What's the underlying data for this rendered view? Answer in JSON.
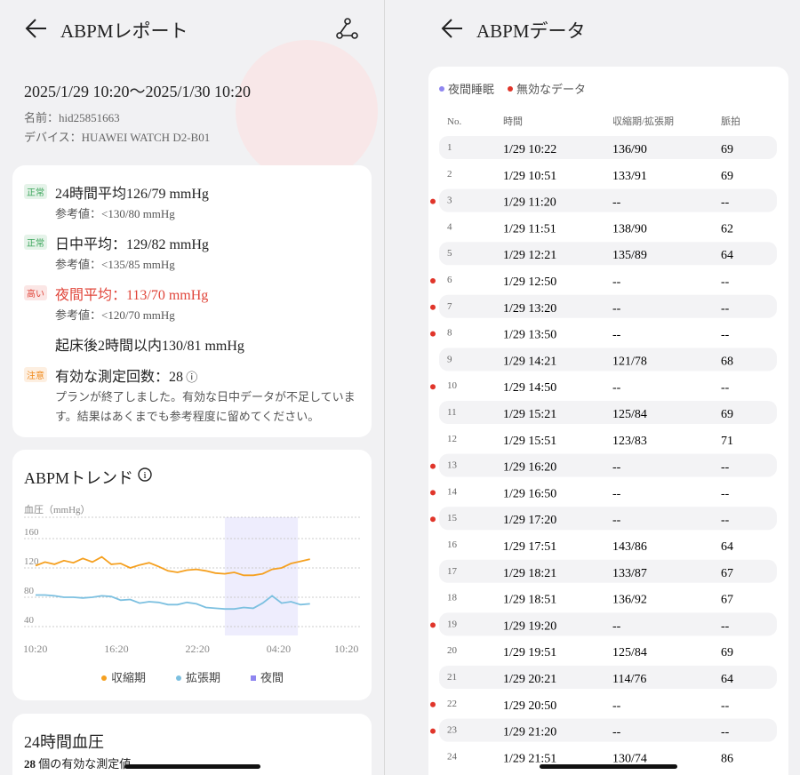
{
  "left": {
    "header": {
      "title": "ABPMレポート"
    },
    "report": {
      "period": "2025/1/29 10:20〜2025/1/30 10:20",
      "name": "名前：hid25851663",
      "device": "デバイス：HUAWEI WATCH D2-B01"
    },
    "summary": [
      {
        "badge": "正常",
        "badge_color": "#3aa55a",
        "text": "24時間平均126/79 mmHg",
        "ref": "参考値：<130/80 mmHg"
      },
      {
        "badge": "正常",
        "badge_color": "#3aa55a",
        "text": "日中平均：129/82 mmHg",
        "ref": "参考値：<135/85 mmHg"
      },
      {
        "badge": "高い",
        "badge_color": "#e0453a",
        "text": "夜間平均：113/70 mmHg",
        "ref": "参考値：<120/70 mmHg",
        "text_color": "#e0453a"
      },
      {
        "text": "起床後2時間以内130/81 mmHg"
      },
      {
        "badge": "注意",
        "badge_color": "#f08a1c",
        "text": "有効な測定回数：28",
        "ref": "プランが終了しました。有効な日中データが不足しています。結果はあくまでも参考程度に留めてください。"
      }
    ],
    "trend": {
      "title": "ABPMトレンド",
      "chart": {
        "type": "line",
        "y_label": "血圧（mmHg）",
        "xlim": [
          0,
          24
        ],
        "xticks": [
          {
            "value": 0,
            "label": "10:20"
          },
          {
            "value": 6,
            "label": "16:20"
          },
          {
            "value": 12,
            "label": "22:20"
          },
          {
            "value": 18,
            "label": "04:20"
          },
          {
            "value": 24,
            "label": "10:20"
          }
        ],
        "ylim": [
          40,
          160
        ],
        "yticks": [
          40,
          80,
          120,
          160
        ],
        "night": [
          14,
          19.4
        ],
        "night_name": "夜間",
        "night_color": "#8f86f0",
        "x": [
          0,
          0.7,
          1.4,
          2.1,
          2.8,
          3.5,
          4.2,
          4.9,
          5.6,
          6.3,
          7,
          7.7,
          8.4,
          9.1,
          9.8,
          10.5,
          11.2,
          11.9,
          12.6,
          13.3,
          14,
          14.7,
          15.4,
          16.1,
          16.8,
          17.5,
          18.2,
          18.9,
          19.6,
          20.3
        ],
        "series": [
          {
            "name": "収縮期",
            "color": "#f5a020",
            "values": [
              123,
              128,
              125,
              130,
              127,
              133,
              128,
              135,
              125,
              126,
              120,
              124,
              127,
              122,
              116,
              114,
              117,
              118,
              116,
              113,
              112,
              114,
              110,
              110,
              112,
              118,
              120,
              126,
              129,
              132
            ]
          },
          {
            "name": "拡張期",
            "color": "#7cc0e0",
            "values": [
              83,
              83,
              82,
              80,
              80,
              79,
              80,
              82,
              81,
              76,
              77,
              72,
              74,
              73,
              70,
              70,
              73,
              71,
              66,
              65,
              64,
              64,
              66,
              65,
              72,
              82,
              72,
              74,
              70,
              71
            ]
          }
        ]
      }
    },
    "bp24": {
      "title": "24時間血圧",
      "valid_count": "28",
      "valid_count_label": "個の有効な測定値"
    }
  },
  "right": {
    "header": {
      "title": "ABPMデータ"
    },
    "legend": [
      {
        "name": "夜間睡眠",
        "color": "#8f86f0"
      },
      {
        "name": "無効なデータ",
        "color": "#e0352a"
      }
    ],
    "table": {
      "columns": [
        "No.",
        "時間",
        "収縮期/拡張期",
        "脈拍"
      ],
      "rows": [
        {
          "no": "1",
          "time": "1/29 10:22",
          "bp": "136/90",
          "pulse": "69",
          "invalid": false
        },
        {
          "no": "2",
          "time": "1/29 10:51",
          "bp": "133/91",
          "pulse": "69",
          "invalid": false
        },
        {
          "no": "3",
          "time": "1/29 11:20",
          "bp": "--",
          "pulse": "--",
          "invalid": true
        },
        {
          "no": "4",
          "time": "1/29 11:51",
          "bp": "138/90",
          "pulse": "62",
          "invalid": false
        },
        {
          "no": "5",
          "time": "1/29 12:21",
          "bp": "135/89",
          "pulse": "64",
          "invalid": false
        },
        {
          "no": "6",
          "time": "1/29 12:50",
          "bp": "--",
          "pulse": "--",
          "invalid": true
        },
        {
          "no": "7",
          "time": "1/29 13:20",
          "bp": "--",
          "pulse": "--",
          "invalid": true
        },
        {
          "no": "8",
          "time": "1/29 13:50",
          "bp": "--",
          "pulse": "--",
          "invalid": true
        },
        {
          "no": "9",
          "time": "1/29 14:21",
          "bp": "121/78",
          "pulse": "68",
          "invalid": false
        },
        {
          "no": "10",
          "time": "1/29 14:50",
          "bp": "--",
          "pulse": "--",
          "invalid": true
        },
        {
          "no": "11",
          "time": "1/29 15:21",
          "bp": "125/84",
          "pulse": "69",
          "invalid": false
        },
        {
          "no": "12",
          "time": "1/29 15:51",
          "bp": "123/83",
          "pulse": "71",
          "invalid": false
        },
        {
          "no": "13",
          "time": "1/29 16:20",
          "bp": "--",
          "pulse": "--",
          "invalid": true
        },
        {
          "no": "14",
          "time": "1/29 16:50",
          "bp": "--",
          "pulse": "--",
          "invalid": true
        },
        {
          "no": "15",
          "time": "1/29 17:20",
          "bp": "--",
          "pulse": "--",
          "invalid": true
        },
        {
          "no": "16",
          "time": "1/29 17:51",
          "bp": "143/86",
          "pulse": "64",
          "invalid": false
        },
        {
          "no": "17",
          "time": "1/29 18:21",
          "bp": "133/87",
          "pulse": "67",
          "invalid": false
        },
        {
          "no": "18",
          "time": "1/29 18:51",
          "bp": "136/92",
          "pulse": "67",
          "invalid": false
        },
        {
          "no": "19",
          "time": "1/29 19:20",
          "bp": "--",
          "pulse": "--",
          "invalid": true
        },
        {
          "no": "20",
          "time": "1/29 19:51",
          "bp": "125/84",
          "pulse": "69",
          "invalid": false
        },
        {
          "no": "21",
          "time": "1/29 20:21",
          "bp": "114/76",
          "pulse": "64",
          "invalid": false
        },
        {
          "no": "22",
          "time": "1/29 20:50",
          "bp": "--",
          "pulse": "--",
          "invalid": true
        },
        {
          "no": "23",
          "time": "1/29 21:20",
          "bp": "--",
          "pulse": "--",
          "invalid": true
        },
        {
          "no": "24",
          "time": "1/29 21:51",
          "bp": "130/74",
          "pulse": "86",
          "invalid": false
        }
      ]
    }
  }
}
